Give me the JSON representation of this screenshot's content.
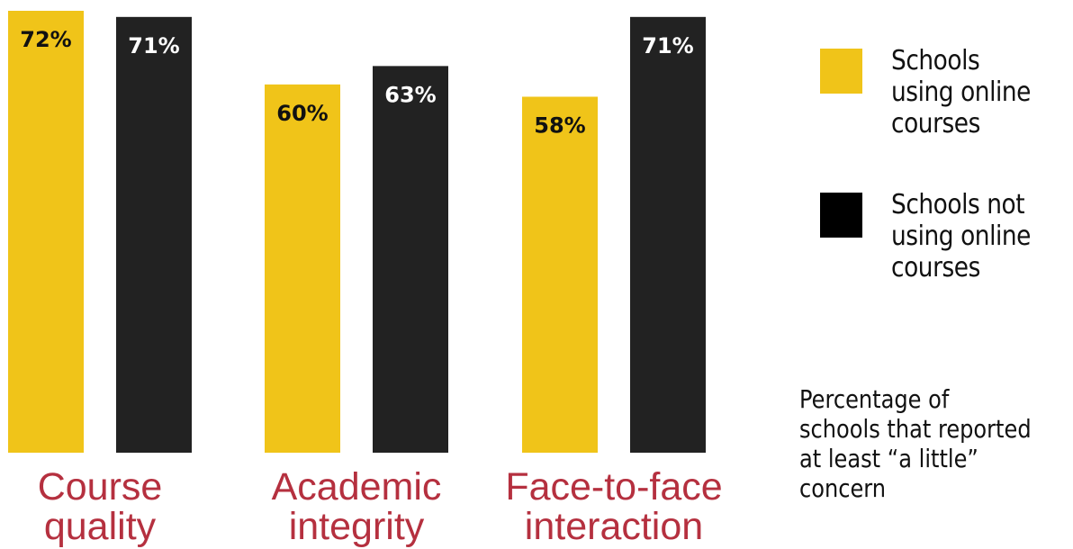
{
  "chart_data": {
    "type": "bar",
    "categories": [
      "Course\nquality",
      "Academic\nintegrity",
      "Face-to-face\ninteraction"
    ],
    "series": [
      {
        "name": "Schools using online courses",
        "color": "#f0c419",
        "values": [
          72,
          60,
          58
        ],
        "labels": [
          "72%",
          "60%",
          "58%"
        ]
      },
      {
        "name": "Schools not using online courses",
        "color": "#222222",
        "values": [
          71,
          63,
          71
        ],
        "labels": [
          "71%",
          "63%",
          "71%"
        ]
      }
    ],
    "note": "Percentage of schools that reported at least “a little” concern",
    "ylim": [
      0,
      72
    ]
  },
  "legend": {
    "item_0": "Schools\nusing online\ncourses",
    "item_1": "Schools not\nusing online\ncourses"
  },
  "colors": {
    "category_text": "#b5303f",
    "label_on_yellow": "#111111",
    "label_on_dark": "#ffffff"
  }
}
